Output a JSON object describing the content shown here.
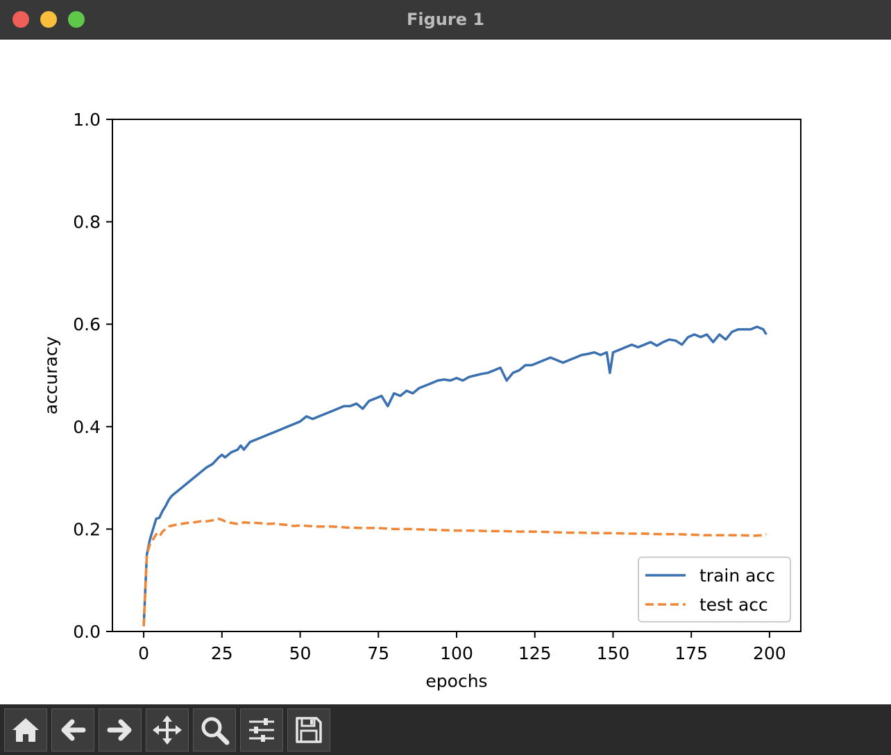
{
  "window": {
    "title": "Figure 1"
  },
  "toolbar": {
    "buttons": [
      {
        "name": "home-button",
        "icon": "home-icon"
      },
      {
        "name": "back-button",
        "icon": "arrow-left-icon"
      },
      {
        "name": "forward-button",
        "icon": "arrow-right-icon"
      },
      {
        "name": "pan-button",
        "icon": "move-icon"
      },
      {
        "name": "zoom-button",
        "icon": "search-icon"
      },
      {
        "name": "configure-subplots-button",
        "icon": "sliders-icon"
      },
      {
        "name": "save-button",
        "icon": "save-icon"
      }
    ]
  },
  "chart_data": {
    "type": "line",
    "title": "",
    "xlabel": "epochs",
    "ylabel": "accuracy",
    "xlim": [
      -10,
      210
    ],
    "ylim": [
      0.0,
      1.0
    ],
    "xticks": [
      "0",
      "25",
      "50",
      "75",
      "100",
      "125",
      "150",
      "175",
      "200"
    ],
    "xtick_values": [
      0,
      25,
      50,
      75,
      100,
      125,
      150,
      175,
      200
    ],
    "yticks": [
      "0.0",
      "0.2",
      "0.4",
      "0.6",
      "0.8",
      "1.0"
    ],
    "ytick_values": [
      0.0,
      0.2,
      0.4,
      0.6,
      0.8,
      1.0
    ],
    "grid": false,
    "legend_position": "bottom-right",
    "series": [
      {
        "name": "train acc",
        "color": "#3a70b0",
        "style": "solid",
        "x": [
          0,
          1,
          2,
          3,
          4,
          5,
          6,
          7,
          8,
          9,
          10,
          12,
          14,
          16,
          18,
          20,
          22,
          24,
          25,
          26,
          28,
          30,
          31,
          32,
          34,
          36,
          38,
          40,
          42,
          44,
          46,
          48,
          50,
          52,
          54,
          56,
          58,
          60,
          62,
          64,
          66,
          68,
          70,
          72,
          74,
          76,
          78,
          80,
          82,
          84,
          86,
          88,
          90,
          92,
          94,
          96,
          98,
          100,
          102,
          104,
          106,
          108,
          110,
          112,
          114,
          116,
          118,
          120,
          122,
          124,
          126,
          128,
          130,
          132,
          134,
          136,
          138,
          140,
          142,
          144,
          146,
          148,
          149,
          150,
          152,
          154,
          156,
          158,
          160,
          162,
          164,
          166,
          168,
          170,
          172,
          174,
          176,
          178,
          180,
          182,
          184,
          186,
          188,
          190,
          192,
          194,
          196,
          198,
          199
        ],
        "y": [
          0.01,
          0.15,
          0.18,
          0.2,
          0.22,
          0.222,
          0.235,
          0.245,
          0.257,
          0.265,
          0.27,
          0.28,
          0.29,
          0.3,
          0.31,
          0.32,
          0.327,
          0.34,
          0.345,
          0.34,
          0.35,
          0.355,
          0.363,
          0.355,
          0.37,
          0.375,
          0.38,
          0.385,
          0.39,
          0.395,
          0.4,
          0.405,
          0.41,
          0.42,
          0.415,
          0.42,
          0.425,
          0.43,
          0.435,
          0.44,
          0.44,
          0.445,
          0.435,
          0.45,
          0.455,
          0.46,
          0.44,
          0.465,
          0.46,
          0.47,
          0.465,
          0.475,
          0.48,
          0.485,
          0.49,
          0.492,
          0.49,
          0.495,
          0.49,
          0.497,
          0.5,
          0.503,
          0.505,
          0.51,
          0.515,
          0.49,
          0.505,
          0.51,
          0.52,
          0.52,
          0.525,
          0.53,
          0.535,
          0.53,
          0.525,
          0.53,
          0.535,
          0.54,
          0.542,
          0.545,
          0.54,
          0.545,
          0.505,
          0.545,
          0.55,
          0.555,
          0.56,
          0.555,
          0.56,
          0.565,
          0.558,
          0.565,
          0.57,
          0.568,
          0.56,
          0.575,
          0.58,
          0.575,
          0.58,
          0.565,
          0.58,
          0.57,
          0.585,
          0.59,
          0.59,
          0.59,
          0.595,
          0.59,
          0.58
        ]
      },
      {
        "name": "test acc",
        "color": "#ef8636",
        "style": "dashed",
        "x": [
          0,
          1,
          2,
          3,
          4,
          5,
          6,
          8,
          10,
          12,
          14,
          16,
          18,
          20,
          22,
          24,
          25,
          26,
          28,
          30,
          32,
          34,
          36,
          38,
          40,
          42,
          44,
          46,
          48,
          50,
          55,
          60,
          65,
          70,
          75,
          80,
          85,
          90,
          95,
          100,
          105,
          110,
          115,
          120,
          125,
          130,
          135,
          140,
          145,
          150,
          155,
          160,
          165,
          170,
          175,
          180,
          185,
          190,
          195,
          198,
          199
        ],
        "y": [
          0.01,
          0.15,
          0.17,
          0.18,
          0.19,
          0.185,
          0.195,
          0.205,
          0.208,
          0.21,
          0.212,
          0.213,
          0.215,
          0.215,
          0.217,
          0.22,
          0.218,
          0.215,
          0.212,
          0.21,
          0.213,
          0.212,
          0.212,
          0.211,
          0.21,
          0.211,
          0.209,
          0.208,
          0.206,
          0.207,
          0.205,
          0.205,
          0.203,
          0.202,
          0.202,
          0.2,
          0.2,
          0.199,
          0.198,
          0.197,
          0.197,
          0.196,
          0.196,
          0.195,
          0.195,
          0.194,
          0.193,
          0.193,
          0.192,
          0.192,
          0.191,
          0.191,
          0.19,
          0.19,
          0.189,
          0.188,
          0.188,
          0.188,
          0.187,
          0.188,
          0.19
        ]
      }
    ]
  }
}
